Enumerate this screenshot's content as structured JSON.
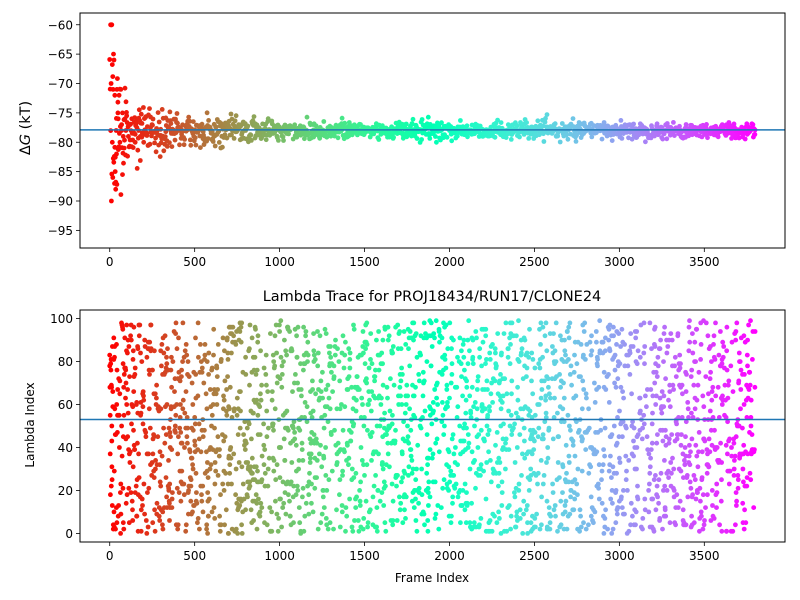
{
  "figure": {
    "background": "#ffffff"
  },
  "chart_data": [
    {
      "type": "scatter",
      "panel": "top",
      "title": "",
      "xlabel": "",
      "ylabel": "ΔG (kT)",
      "ylabel_parts": {
        "delta": "Δ",
        "symbol": "G",
        "unit": " (kT)"
      },
      "xlim": [
        -175,
        3975
      ],
      "ylim": [
        -98,
        -58
      ],
      "xticks": [
        0,
        500,
        1000,
        1500,
        2000,
        2500,
        3000,
        3500
      ],
      "yticks": [
        -60,
        -65,
        -70,
        -75,
        -80,
        -85,
        -90,
        -95
      ],
      "xticklabels": [
        "0",
        "500",
        "1000",
        "1500",
        "2000",
        "2500",
        "3000",
        "3500"
      ],
      "yticklabels": [
        "−60",
        "−65",
        "−70",
        "−75",
        "−80",
        "−85",
        "−90",
        "−95"
      ],
      "n_frames": 3800,
      "colormap": "rainbow (reversed: red at frame 0, violet at last frame)",
      "converged_value": -78,
      "hline": {
        "y": -77.9,
        "color": "#1f77b4"
      },
      "grid": false,
      "legend": "none",
      "series": [
        {
          "x": [
            5,
            8,
            10,
            12,
            15,
            18,
            20,
            22,
            25,
            28,
            30,
            32,
            35,
            38,
            40,
            42,
            45,
            48,
            50,
            55,
            60,
            65,
            70,
            75,
            80,
            85,
            90,
            95,
            100,
            110,
            120,
            130,
            140,
            150,
            160,
            170,
            180,
            190,
            200,
            220,
            240,
            260,
            280,
            300,
            330,
            360,
            400,
            450,
            500,
            550,
            600,
            700,
            800,
            900,
            1000,
            1100,
            1200,
            1400,
            1600,
            1800,
            2000,
            2300,
            2600,
            2900,
            3200,
            3500,
            3799
          ],
          "y": [
            -60,
            -70,
            -90,
            -60,
            -80,
            -86,
            -71,
            -65,
            -66,
            -87,
            -72,
            -85,
            -88,
            -78,
            -82,
            -71,
            -81,
            -75,
            -76,
            -72,
            -80,
            -71,
            -77,
            -75,
            -79,
            -81,
            -76,
            -78,
            -75.5,
            -79,
            -77,
            -76,
            -78.5,
            -80,
            -77.5,
            -78,
            -79,
            -76.8,
            -80,
            -78.5,
            -77.5,
            -78.3,
            -78,
            -77.8,
            -78.2,
            -78.1,
            -77.5,
            -78,
            -77.9,
            -78.2,
            -78,
            -77.7,
            -78,
            -77.9,
            -77.8,
            -78,
            -77.9,
            -78,
            -77.95,
            -77.9,
            -78,
            -77.95,
            -77.9,
            -78,
            -77.95,
            -78,
            -77.9
          ]
        }
      ]
    },
    {
      "type": "scatter",
      "panel": "bottom",
      "title": "Lambda Trace for PROJ18434/RUN17/CLONE24",
      "xlabel": "Frame Index",
      "ylabel": "Lambda Index",
      "xlim": [
        -175,
        3975
      ],
      "ylim": [
        -4,
        104
      ],
      "xticks": [
        0,
        500,
        1000,
        1500,
        2000,
        2500,
        3000,
        3500
      ],
      "yticks": [
        0,
        20,
        40,
        60,
        80,
        100
      ],
      "xticklabels": [
        "0",
        "500",
        "1000",
        "1500",
        "2000",
        "2500",
        "3000",
        "3500"
      ],
      "yticklabels": [
        "0",
        "20",
        "40",
        "60",
        "80",
        "100"
      ],
      "n_frames": 3800,
      "colormap": "rainbow (reversed: red at frame 0, violet at last frame)",
      "value_range": [
        0,
        99
      ],
      "hline": {
        "y": 53,
        "color": "#1f77b4"
      },
      "grid": false,
      "legend": "none",
      "series": [
        {
          "x": [
            0,
            3,
            6,
            9,
            12,
            15,
            18,
            21,
            24,
            27,
            30,
            40,
            50,
            60,
            80,
            100,
            150,
            200,
            250,
            300,
            400,
            500,
            600,
            800,
            1000,
            1200,
            1500,
            1800,
            2100,
            2400,
            2700,
            3000,
            3300,
            3600,
            3799
          ],
          "y": [
            83,
            37,
            79,
            22,
            50,
            13,
            66,
            4,
            91,
            29,
            58,
            88,
            8,
            71,
            45,
            97,
            19,
            62,
            33,
            85,
            2,
            54,
            76,
            11,
            40,
            93,
            27,
            68,
            49,
            6,
            81,
            35,
            59,
            15,
            94
          ]
        }
      ]
    }
  ]
}
